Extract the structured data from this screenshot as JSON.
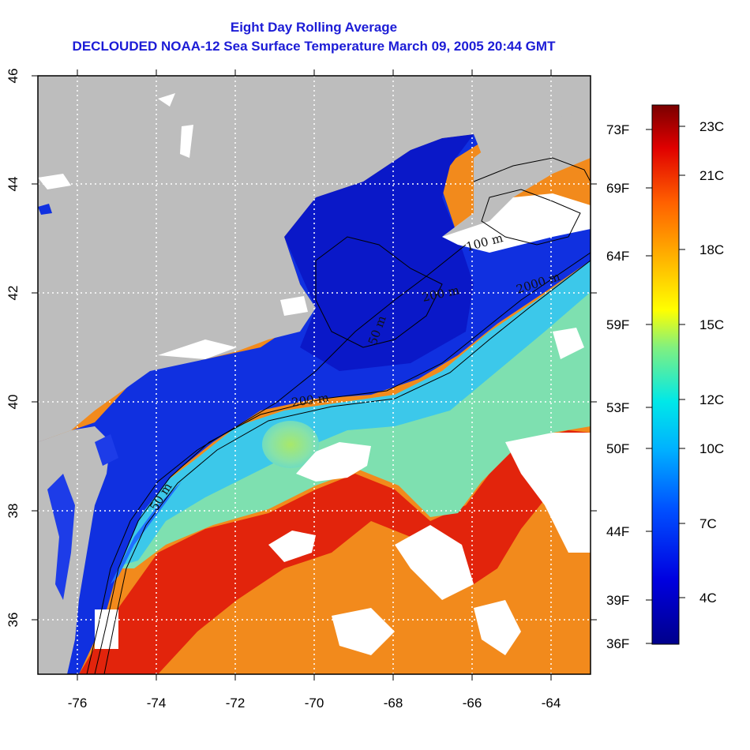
{
  "header": {
    "title": "Eight Day Rolling Average",
    "subtitle": "DECLOUDED NOAA-12 Sea Surface Temperature March 09, 2005 20:44 GMT"
  },
  "map": {
    "lon_range": [
      -77,
      -63
    ],
    "lat_range": [
      35,
      46
    ],
    "x_ticks": [
      "-76",
      "-74",
      "-72",
      "-70",
      "-68",
      "-66",
      "-64"
    ],
    "y_ticks": [
      "36",
      "38",
      "40",
      "42",
      "44",
      "46"
    ],
    "grid": "dotted white",
    "land_color": "#bdbdbd",
    "cloud_color": "#ffffff",
    "contour_labels": [
      "100 m",
      "2000 m",
      "200 m",
      "50 m",
      "200 m",
      "50 m"
    ]
  },
  "colorbar": {
    "fahrenheit_labels": [
      "73F",
      "69F",
      "64F",
      "59F",
      "53F",
      "50F",
      "44F",
      "39F",
      "36F"
    ],
    "celsius_labels": [
      "23C",
      "21C",
      "18C",
      "15C",
      "12C",
      "10C",
      "7C",
      "4C"
    ],
    "colors": [
      "#7a0000",
      "#d40000",
      "#ff6a00",
      "#ffff00",
      "#40e0c0",
      "#00ccff",
      "#0060ff",
      "#0000a0"
    ]
  }
}
